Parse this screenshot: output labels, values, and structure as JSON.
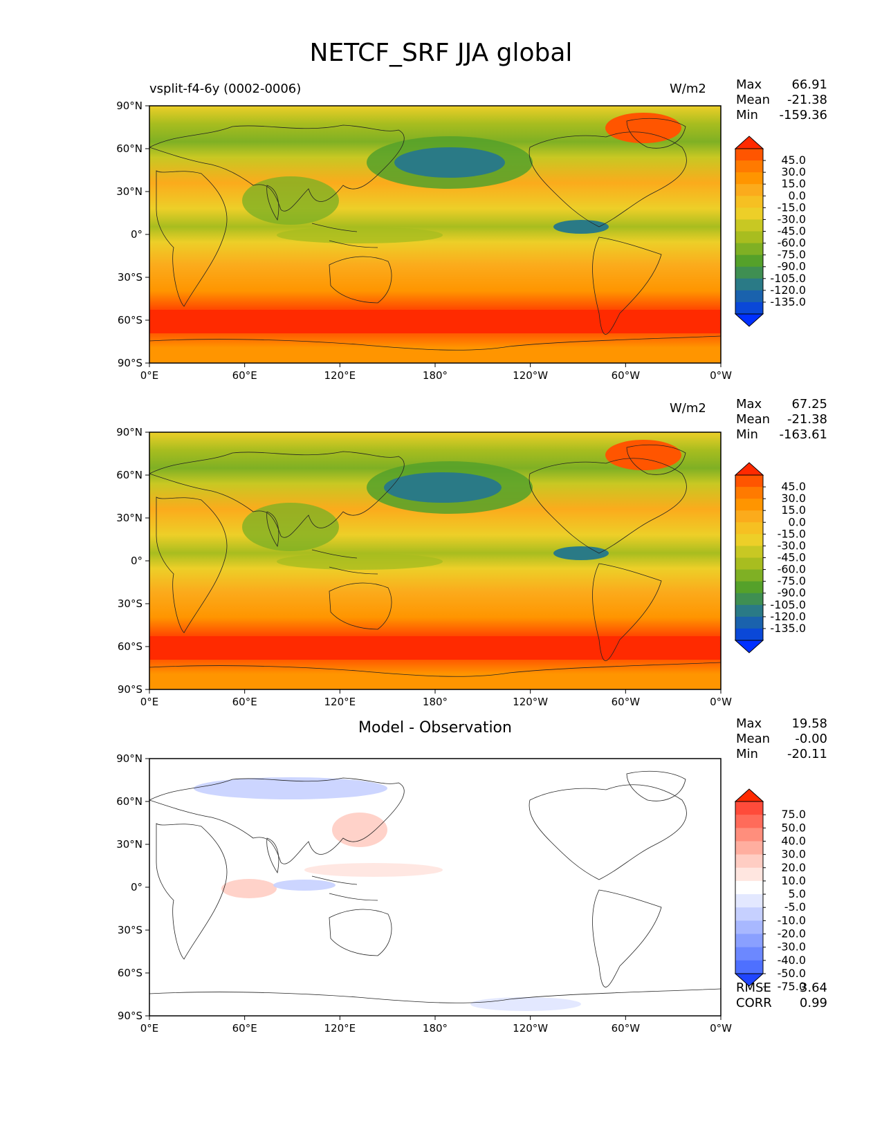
{
  "title": "NETCF_SRF JJA global",
  "chart_data": [
    {
      "type": "heatmap",
      "panel": "test",
      "case_label": "vsplit-f4-6y (0002-0006)",
      "units": "W/m2",
      "stats": {
        "max_label": "Max",
        "max": "66.91",
        "mean_label": "Mean",
        "mean": "-21.38",
        "min_label": "Min",
        "min": "-159.36"
      },
      "x_ticks": [
        "0°E",
        "60°E",
        "120°E",
        "180°",
        "120°W",
        "60°W",
        "0°W"
      ],
      "y_ticks": [
        "90°N",
        "60°N",
        "30°N",
        "0°",
        "30°S",
        "60°S",
        "90°S"
      ],
      "colorbar_levels": [
        "45.0",
        "30.0",
        "15.0",
        "0.0",
        "-15.0",
        "-30.0",
        "-45.0",
        "-60.0",
        "-75.0",
        "-90.0",
        "-105.0",
        "-120.0",
        "-135.0"
      ],
      "colorbar_colors": [
        "#ff2a00",
        "#ff5500",
        "#ff7a00",
        "#ff9500",
        "#fbab1c",
        "#f6c022",
        "#edcf28",
        "#c8c823",
        "#a8bd1f",
        "#7fb024",
        "#55a12a",
        "#3f8f52",
        "#2a7a86",
        "#1a62ad",
        "#0a48d8",
        "#0030ff"
      ],
      "xlim": [
        0,
        360
      ],
      "ylim": [
        -90,
        90
      ]
    },
    {
      "type": "heatmap",
      "panel": "reference",
      "case_label": "",
      "units": "W/m2",
      "stats": {
        "max_label": "Max",
        "max": "67.25",
        "mean_label": "Mean",
        "mean": "-21.38",
        "min_label": "Min",
        "min": "-163.61"
      },
      "x_ticks": [
        "0°E",
        "60°E",
        "120°E",
        "180°",
        "120°W",
        "60°W",
        "0°W"
      ],
      "y_ticks": [
        "90°N",
        "60°N",
        "30°N",
        "0°",
        "30°S",
        "60°S",
        "90°S"
      ],
      "colorbar_levels": [
        "45.0",
        "30.0",
        "15.0",
        "0.0",
        "-15.0",
        "-30.0",
        "-45.0",
        "-60.0",
        "-75.0",
        "-90.0",
        "-105.0",
        "-120.0",
        "-135.0"
      ],
      "colorbar_colors": [
        "#ff2a00",
        "#ff5500",
        "#ff7a00",
        "#ff9500",
        "#fbab1c",
        "#f6c022",
        "#edcf28",
        "#c8c823",
        "#a8bd1f",
        "#7fb024",
        "#55a12a",
        "#3f8f52",
        "#2a7a86",
        "#1a62ad",
        "#0a48d8",
        "#0030ff"
      ],
      "xlim": [
        0,
        360
      ],
      "ylim": [
        -90,
        90
      ]
    },
    {
      "type": "heatmap",
      "panel": "difference",
      "title": "Model - Observation",
      "stats": {
        "max_label": "Max",
        "max": "19.58",
        "mean_label": "Mean",
        "mean": "-0.00",
        "min_label": "Min",
        "min": "-20.11"
      },
      "metrics": {
        "rmse_label": "RMSE",
        "rmse": "3.64",
        "corr_label": "CORR",
        "corr": "0.99"
      },
      "x_ticks": [
        "0°E",
        "60°E",
        "120°E",
        "180°",
        "120°W",
        "60°W",
        "0°W"
      ],
      "y_ticks": [
        "90°N",
        "60°N",
        "30°N",
        "0°",
        "30°S",
        "60°S",
        "90°S"
      ],
      "colorbar_levels": [
        "75.0",
        "50.0",
        "40.0",
        "30.0",
        "20.0",
        "10.0",
        "5.0",
        "-5.0",
        "-10.0",
        "-20.0",
        "-30.0",
        "-40.0",
        "-50.0",
        "-75.0"
      ],
      "colorbar_colors": [
        "#ff2a00",
        "#ff4b3a",
        "#ff6b5a",
        "#ff8e7c",
        "#ffae9f",
        "#ffcdc3",
        "#ffe6e0",
        "#ffffff",
        "#e3e8ff",
        "#c6d0ff",
        "#a8b8ff",
        "#8aa0ff",
        "#6c88ff",
        "#4e70ff",
        "#1f45ff"
      ],
      "xlim": [
        0,
        360
      ],
      "ylim": [
        -90,
        90
      ]
    }
  ]
}
